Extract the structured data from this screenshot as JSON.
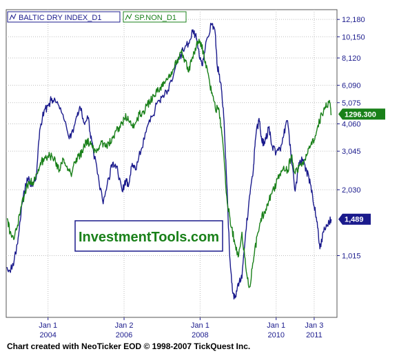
{
  "footer": "Chart created with NeoTicker EOD © 1998-2007 TickQuest Inc.",
  "watermark": "InvestmentTools.com",
  "chart_data": {
    "type": "line",
    "y_axis_ticks": [
      "12,180",
      "10,150",
      "8,120",
      "6,090",
      "5,075",
      "4,060",
      "3,045",
      "2,030",
      "1,015"
    ],
    "y_axis_values": [
      12180,
      10150,
      8120,
      6090,
      5075,
      4060,
      3045,
      2030,
      1015
    ],
    "y_scale": "log",
    "ylim": [
      530,
      13500
    ],
    "x_axis_ticks": [
      {
        "top": "Jan 1",
        "bottom": "2004",
        "date": 2004.0
      },
      {
        "top": "Jan 2",
        "bottom": "2006",
        "date": 2006.0
      },
      {
        "top": "Jan 1",
        "bottom": "2008",
        "date": 2008.0
      },
      {
        "top": "Jan 1",
        "bottom": "2010",
        "date": 2010.0
      },
      {
        "top": "Jan 3",
        "bottom": "2011",
        "date": 2011.0
      }
    ],
    "xlim": [
      2002.9,
      2011.6
    ],
    "grid": true,
    "legend_position": "top-left",
    "series": [
      {
        "name": "BALTIC DRY INDEX_D1",
        "color": "#1a1a8c",
        "last_label": "1,489",
        "last_value": 1489,
        "x": [
          2002.92,
          2003.05,
          2003.2,
          2003.3,
          2003.45,
          2003.6,
          2003.7,
          2003.78,
          2003.9,
          2004.0,
          2004.1,
          2004.2,
          2004.35,
          2004.5,
          2004.6,
          2004.75,
          2004.85,
          2004.95,
          2005.05,
          2005.15,
          2005.3,
          2005.45,
          2005.6,
          2005.7,
          2005.8,
          2005.95,
          2006.05,
          2006.1,
          2006.2,
          2006.3,
          2006.45,
          2006.6,
          2006.75,
          2006.9,
          2007.0,
          2007.15,
          2007.3,
          2007.45,
          2007.55,
          2007.7,
          2007.8,
          2007.88,
          2007.95,
          2008.05,
          2008.15,
          2008.3,
          2008.4,
          2008.45,
          2008.55,
          2008.62,
          2008.7,
          2008.78,
          2008.85,
          2008.92,
          2009.0,
          2009.1,
          2009.2,
          2009.3,
          2009.4,
          2009.45,
          2009.55,
          2009.62,
          2009.7,
          2009.8,
          2009.9,
          2010.0,
          2010.1,
          2010.2,
          2010.3,
          2010.4,
          2010.5,
          2010.6,
          2010.7,
          2010.8,
          2010.9,
          2011.0,
          2011.08,
          2011.15,
          2011.25,
          2011.35,
          2011.45
        ],
        "y": [
          900,
          880,
          1150,
          1700,
          2300,
          2100,
          2400,
          3800,
          4700,
          4900,
          5300,
          5100,
          4600,
          3800,
          3500,
          4400,
          4800,
          4100,
          4300,
          3400,
          2400,
          1750,
          2300,
          2700,
          2600,
          2000,
          2250,
          2100,
          2600,
          2500,
          3100,
          3900,
          4400,
          5200,
          5400,
          5800,
          6800,
          8000,
          8800,
          9500,
          10700,
          10400,
          9000,
          7500,
          9600,
          11500,
          10500,
          7500,
          6200,
          4400,
          2200,
          1000,
          700,
          650,
          760,
          800,
          1300,
          1900,
          2500,
          3400,
          4300,
          3400,
          3300,
          3900,
          3200,
          3000,
          3100,
          3600,
          4200,
          2800,
          2000,
          2700,
          2800,
          2500,
          2150,
          1700,
          1450,
          1090,
          1300,
          1400,
          1489
        ]
      },
      {
        "name": "SP.NON_D1",
        "color": "#198019",
        "last_label": "1296.300",
        "last_value": 4500,
        "x": [
          2002.92,
          2003.0,
          2003.1,
          2003.2,
          2003.3,
          2003.4,
          2003.5,
          2003.6,
          2003.7,
          2003.8,
          2003.9,
          2004.0,
          2004.1,
          2004.2,
          2004.3,
          2004.4,
          2004.5,
          2004.6,
          2004.7,
          2004.8,
          2004.9,
          2005.0,
          2005.1,
          2005.2,
          2005.3,
          2005.4,
          2005.5,
          2005.6,
          2005.7,
          2005.8,
          2005.9,
          2006.0,
          2006.1,
          2006.2,
          2006.3,
          2006.4,
          2006.5,
          2006.6,
          2006.7,
          2006.8,
          2006.9,
          2007.0,
          2007.1,
          2007.2,
          2007.3,
          2007.4,
          2007.5,
          2007.6,
          2007.7,
          2007.8,
          2007.9,
          2008.0,
          2008.1,
          2008.2,
          2008.3,
          2008.4,
          2008.5,
          2008.6,
          2008.7,
          2008.8,
          2008.9,
          2009.0,
          2009.1,
          2009.2,
          2009.3,
          2009.4,
          2009.5,
          2009.6,
          2009.7,
          2009.8,
          2009.9,
          2010.0,
          2010.1,
          2010.2,
          2010.3,
          2010.4,
          2010.5,
          2010.6,
          2010.7,
          2010.8,
          2010.9,
          2011.0,
          2011.1,
          2011.2,
          2011.3,
          2011.4,
          2011.45
        ],
        "y": [
          1500,
          1300,
          1200,
          1400,
          1700,
          2000,
          2200,
          2200,
          2400,
          2700,
          2800,
          2900,
          2900,
          2700,
          2500,
          2800,
          2600,
          2400,
          2700,
          2900,
          3000,
          3400,
          3300,
          3100,
          3100,
          3400,
          3200,
          3300,
          3500,
          3800,
          3900,
          4300,
          4400,
          4000,
          4100,
          4500,
          4600,
          4900,
          5200,
          5400,
          5800,
          6000,
          6400,
          6600,
          7200,
          8000,
          8600,
          8000,
          7000,
          8200,
          9200,
          9700,
          8500,
          7000,
          5600,
          4800,
          4700,
          3300,
          1900,
          1400,
          1200,
          1000,
          1300,
          900,
          730,
          950,
          1250,
          1500,
          1600,
          1800,
          2000,
          2150,
          2400,
          2600,
          2500,
          2900,
          2400,
          2600,
          2700,
          2900,
          3200,
          3400,
          4000,
          4500,
          4800,
          5200,
          4500
        ]
      }
    ]
  }
}
